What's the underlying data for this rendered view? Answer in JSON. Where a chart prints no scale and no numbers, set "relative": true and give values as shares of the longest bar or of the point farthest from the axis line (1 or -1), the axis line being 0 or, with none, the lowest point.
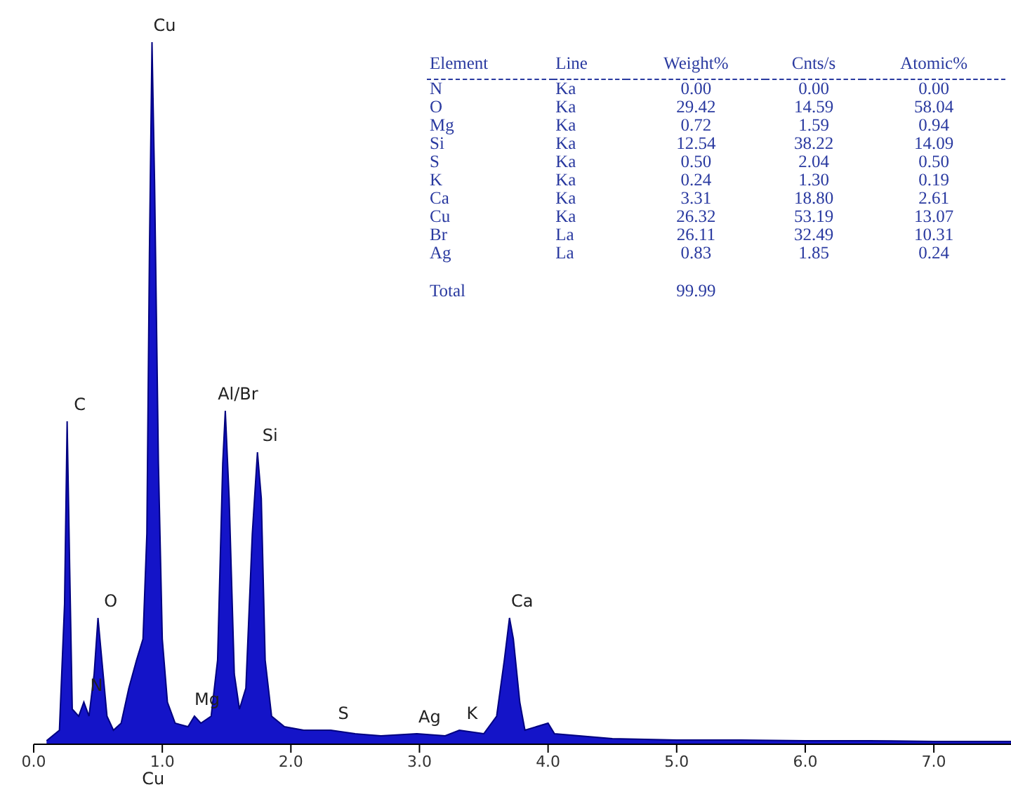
{
  "chart_data": [
    {
      "type": "area",
      "relative": true,
      "color": "#1414c8",
      "tick_labels": "x",
      "grid": false,
      "legend": false,
      "xlim": [
        0,
        7.6
      ],
      "xticks": [
        {
          "value": 0,
          "label": "0.0"
        },
        {
          "value": 1,
          "label": "1.0"
        },
        {
          "value": 2,
          "label": "2.0"
        },
        {
          "value": 3,
          "label": "3.0"
        },
        {
          "value": 4,
          "label": "4.0"
        },
        {
          "value": 5,
          "label": "5.0"
        },
        {
          "value": 6,
          "label": "6.0"
        },
        {
          "value": 7,
          "label": "7.0"
        }
      ],
      "x": [
        0.1,
        0.2,
        0.24,
        0.26,
        0.28,
        0.3,
        0.35,
        0.39,
        0.43,
        0.47,
        0.5,
        0.53,
        0.57,
        0.62,
        0.68,
        0.74,
        0.8,
        0.85,
        0.88,
        0.9,
        0.92,
        0.94,
        0.97,
        1.0,
        1.04,
        1.1,
        1.2,
        1.25,
        1.3,
        1.38,
        1.43,
        1.47,
        1.49,
        1.52,
        1.56,
        1.6,
        1.65,
        1.7,
        1.74,
        1.77,
        1.8,
        1.85,
        1.95,
        2.1,
        2.31,
        2.5,
        2.7,
        2.98,
        3.2,
        3.31,
        3.5,
        3.6,
        3.66,
        3.7,
        3.73,
        3.78,
        3.82,
        4.0,
        4.05,
        4.5,
        5.0,
        5.5,
        6.0,
        6.5,
        7.0,
        7.6
      ],
      "values": [
        0.005,
        0.02,
        0.2,
        0.46,
        0.25,
        0.05,
        0.04,
        0.06,
        0.04,
        0.1,
        0.18,
        0.12,
        0.04,
        0.02,
        0.03,
        0.08,
        0.12,
        0.15,
        0.3,
        0.7,
        1.0,
        0.8,
        0.4,
        0.15,
        0.06,
        0.03,
        0.025,
        0.04,
        0.03,
        0.04,
        0.12,
        0.4,
        0.475,
        0.35,
        0.1,
        0.05,
        0.08,
        0.3,
        0.416,
        0.35,
        0.12,
        0.04,
        0.025,
        0.02,
        0.02,
        0.015,
        0.012,
        0.015,
        0.012,
        0.02,
        0.015,
        0.04,
        0.12,
        0.18,
        0.15,
        0.06,
        0.02,
        0.03,
        0.015,
        0.008,
        0.006,
        0.006,
        0.005,
        0.005,
        0.004,
        0.004
      ],
      "annotations": [
        {
          "text": "C",
          "x": 0.26,
          "y": 0.46
        },
        {
          "text": "N",
          "x": 0.39,
          "y": 0.06
        },
        {
          "text": "O",
          "x": 0.5,
          "y": 0.18
        },
        {
          "text": "Cu",
          "x": 0.92,
          "y": 1.0
        },
        {
          "text": "Cu",
          "x": 0.93,
          "y": 0
        },
        {
          "text": "Mg",
          "x": 1.25,
          "y": 0.04
        },
        {
          "text": "Al/Br",
          "x": 1.49,
          "y": 0.475
        },
        {
          "text": "Si",
          "x": 1.74,
          "y": 0.416
        },
        {
          "text": "S",
          "x": 2.31,
          "y": 0.02
        },
        {
          "text": "Ag",
          "x": 2.98,
          "y": 0.015
        },
        {
          "text": "K",
          "x": 3.31,
          "y": 0.02
        },
        {
          "text": "Ca",
          "x": 3.7,
          "y": 0.18
        }
      ]
    },
    {
      "type": "other",
      "categories": [
        "Element",
        "Line",
        "Weight%",
        "Cnts/s",
        "Atomic%"
      ],
      "cell_labels": [
        [
          "N",
          "Ka",
          "0.00",
          "0.00",
          "0.00"
        ],
        [
          "O",
          "Ka",
          "29.42",
          "14.59",
          "58.04"
        ],
        [
          "Mg",
          "Ka",
          "0.72",
          "1.59",
          "0.94"
        ],
        [
          "Si",
          "Ka",
          "12.54",
          "38.22",
          "14.09"
        ],
        [
          "S",
          "Ka",
          "0.50",
          "2.04",
          "0.50"
        ],
        [
          "K",
          "Ka",
          "0.24",
          "1.30",
          "0.19"
        ],
        [
          "Ca",
          "Ka",
          "3.31",
          "18.80",
          "2.61"
        ],
        [
          "Cu",
          "Ka",
          "26.32",
          "53.19",
          "13.07"
        ],
        [
          "Br",
          "La",
          "26.11",
          "32.49",
          "10.31"
        ],
        [
          "Ag",
          "La",
          "0.83",
          "1.85",
          "0.24"
        ],
        [
          "Total",
          null,
          "99.99",
          null,
          null
        ]
      ]
    }
  ]
}
